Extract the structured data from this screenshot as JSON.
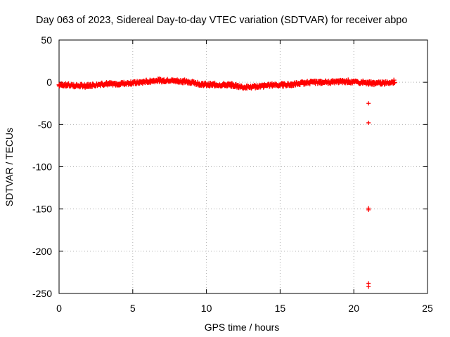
{
  "chart_data": {
    "type": "scatter",
    "title": "Day 063 of 2023, Sidereal Day-to-day VTEC variation (SDTVAR) for receiver abpo",
    "xlabel": "GPS time / hours",
    "ylabel": "SDTVAR / TECUs",
    "xlim": [
      0,
      25
    ],
    "ylim": [
      -250,
      50
    ],
    "xticks": [
      0,
      5,
      10,
      15,
      20,
      25
    ],
    "yticks": [
      50,
      0,
      -50,
      -100,
      -150,
      -200,
      -250
    ],
    "grid": true,
    "marker": "plus",
    "color": "#ff0000",
    "series": [
      {
        "name": "SDTVAR",
        "trend": {
          "x": [
            0,
            0.5,
            1.0,
            1.5,
            2.0,
            2.5,
            3.0,
            3.5,
            4.0,
            4.5,
            5.0,
            5.5,
            6.0,
            6.5,
            7.0,
            7.5,
            8.0,
            8.5,
            9.0,
            9.5,
            10.0,
            10.5,
            11.0,
            11.5,
            12.0,
            12.5,
            13.0,
            13.5,
            14.0,
            14.5,
            15.0,
            15.5,
            16.0,
            16.5,
            17.0,
            17.5,
            18.0,
            18.5,
            19.0,
            19.5,
            20.0,
            20.5,
            21.0,
            21.5,
            22.0,
            22.5,
            22.8
          ],
          "y": [
            -3,
            -3,
            -4,
            -4,
            -4,
            -3,
            -2,
            -2,
            -2,
            -1,
            -1,
            0,
            1,
            2,
            2,
            2,
            2,
            1,
            0,
            -2,
            -3,
            -3,
            -3,
            -3,
            -4,
            -6,
            -6,
            -5,
            -4,
            -3,
            -3,
            -3,
            -2,
            -1,
            0,
            0,
            0,
            0,
            1,
            1,
            0,
            0,
            -1,
            -1,
            -1,
            0,
            1
          ]
        },
        "outliers": {
          "x": [
            21.0,
            21.0,
            21.0,
            21.0,
            21.0,
            21.0
          ],
          "y": [
            -25,
            -48,
            -149,
            -151,
            -238,
            -242
          ]
        }
      }
    ]
  }
}
